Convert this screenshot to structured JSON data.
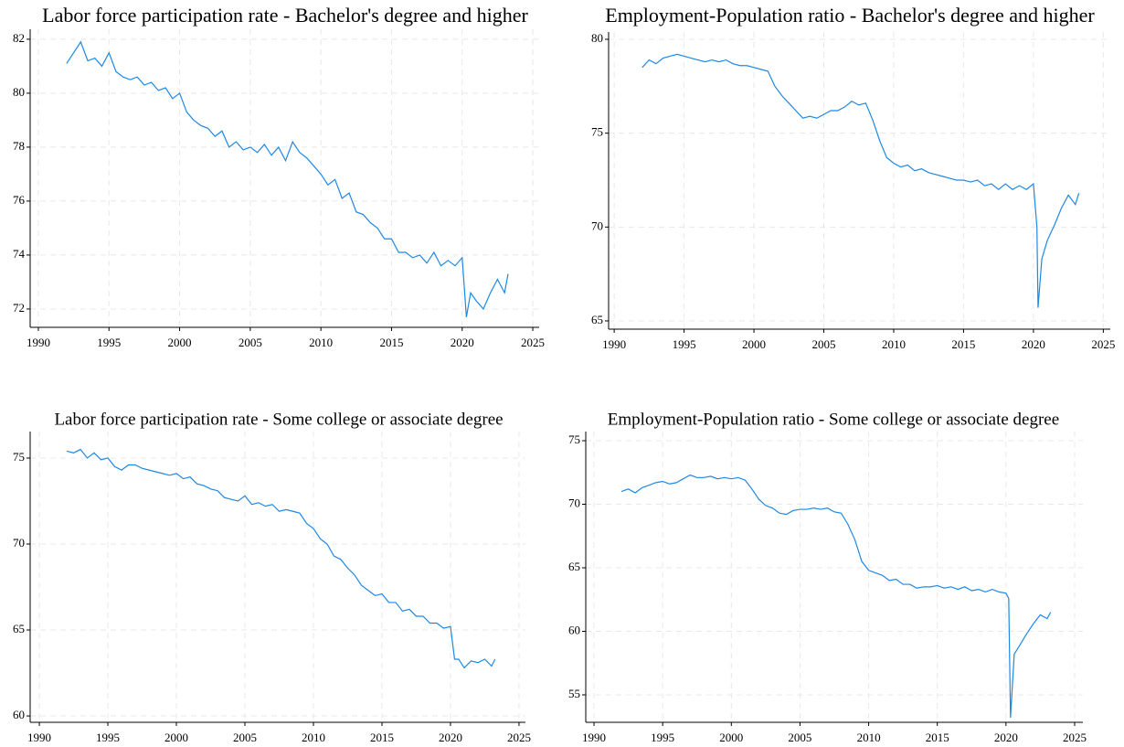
{
  "chart_data": [
    {
      "type": "line",
      "title": "Labor force participation rate - Bachelor's degree and higher",
      "color": "#1e88e5",
      "grid": true,
      "xlim": [
        1989.42,
        2025.45
      ],
      "ylim": [
        71.32,
        82.37
      ],
      "xticks": [
        1990,
        1995,
        2000,
        2005,
        2010,
        2015,
        2020,
        2025
      ],
      "yticks": [
        72,
        74,
        76,
        78,
        80,
        82
      ],
      "x": [
        1992.0,
        1992.5,
        1993.0,
        1993.5,
        1994.0,
        1994.5,
        1995.0,
        1995.5,
        1996.0,
        1996.5,
        1997.0,
        1997.5,
        1998.0,
        1998.5,
        1999.0,
        1999.5,
        2000.0,
        2000.5,
        2001.0,
        2001.5,
        2002.0,
        2002.5,
        2003.0,
        2003.5,
        2004.0,
        2004.5,
        2005.0,
        2005.5,
        2006.0,
        2006.5,
        2007.0,
        2007.5,
        2008.0,
        2008.5,
        2009.0,
        2009.5,
        2010.0,
        2010.5,
        2011.0,
        2011.5,
        2012.0,
        2012.5,
        2013.0,
        2013.5,
        2014.0,
        2014.5,
        2015.0,
        2015.5,
        2016.0,
        2016.5,
        2017.0,
        2017.5,
        2018.0,
        2018.5,
        2019.0,
        2019.5,
        2020.0,
        2020.3,
        2020.6,
        2021.0,
        2021.5,
        2022.0,
        2022.5,
        2023.0,
        2023.25
      ],
      "values": [
        81.1,
        81.5,
        81.9,
        81.2,
        81.3,
        81.0,
        81.5,
        80.8,
        80.6,
        80.5,
        80.6,
        80.3,
        80.4,
        80.1,
        80.2,
        79.8,
        80.0,
        79.3,
        79.0,
        78.8,
        78.7,
        78.4,
        78.6,
        78.0,
        78.2,
        77.9,
        78.0,
        77.8,
        78.1,
        77.7,
        78.0,
        77.5,
        78.2,
        77.8,
        77.6,
        77.3,
        77.0,
        76.6,
        76.8,
        76.1,
        76.3,
        75.6,
        75.5,
        75.2,
        75.0,
        74.6,
        74.6,
        74.1,
        74.1,
        73.9,
        74.0,
        73.7,
        74.1,
        73.6,
        73.8,
        73.6,
        73.9,
        71.7,
        72.6,
        72.3,
        72.0,
        72.6,
        73.1,
        72.6,
        73.3
      ]
    },
    {
      "type": "line",
      "title": "Employment-Population ratio - Bachelor's degree and higher",
      "color": "#1e88e5",
      "grid": true,
      "xlim": [
        1989.6,
        2025.5
      ],
      "ylim": [
        64.56,
        80.39
      ],
      "xticks": [
        1990,
        1995,
        2000,
        2005,
        2010,
        2015,
        2020,
        2025
      ],
      "yticks": [
        65,
        70,
        75,
        80
      ],
      "x": [
        1992.0,
        1992.5,
        1993.0,
        1993.5,
        1994.0,
        1994.5,
        1995.0,
        1995.5,
        1996.0,
        1996.5,
        1997.0,
        1997.5,
        1998.0,
        1998.5,
        1999.0,
        1999.5,
        2000.0,
        2000.5,
        2001.0,
        2001.5,
        2002.0,
        2002.5,
        2003.0,
        2003.5,
        2004.0,
        2004.5,
        2005.0,
        2005.5,
        2006.0,
        2006.5,
        2007.0,
        2007.5,
        2008.0,
        2008.5,
        2009.0,
        2009.5,
        2010.0,
        2010.5,
        2011.0,
        2011.5,
        2012.0,
        2012.5,
        2013.0,
        2013.5,
        2014.0,
        2014.5,
        2015.0,
        2015.5,
        2016.0,
        2016.5,
        2017.0,
        2017.5,
        2018.0,
        2018.5,
        2019.0,
        2019.5,
        2020.0,
        2020.25,
        2020.33,
        2020.6,
        2021.0,
        2021.5,
        2022.0,
        2022.5,
        2023.0,
        2023.25
      ],
      "values": [
        78.5,
        78.9,
        78.7,
        79.0,
        79.1,
        79.2,
        79.1,
        79.0,
        78.9,
        78.8,
        78.9,
        78.8,
        78.9,
        78.7,
        78.6,
        78.6,
        78.5,
        78.4,
        78.3,
        77.5,
        77.0,
        76.6,
        76.2,
        75.8,
        75.9,
        75.8,
        76.0,
        76.2,
        76.2,
        76.4,
        76.7,
        76.5,
        76.6,
        75.7,
        74.6,
        73.7,
        73.4,
        73.2,
        73.3,
        73.0,
        73.1,
        72.9,
        72.8,
        72.7,
        72.6,
        72.5,
        72.5,
        72.4,
        72.5,
        72.2,
        72.3,
        72.0,
        72.3,
        72.0,
        72.2,
        72.0,
        72.3,
        70.0,
        65.7,
        68.3,
        69.3,
        70.1,
        71.0,
        71.7,
        71.2,
        71.8
      ]
    },
    {
      "type": "line",
      "title": "Labor force participation rate - Some college or associate degree",
      "color": "#1e88e5",
      "grid": true,
      "xlim": [
        1989.33,
        2025.47
      ],
      "ylim": [
        59.63,
        76.54
      ],
      "xticks": [
        1990,
        1995,
        2000,
        2005,
        2010,
        2015,
        2020,
        2025
      ],
      "yticks": [
        60,
        65,
        70,
        75
      ],
      "x": [
        1992.0,
        1992.5,
        1993.0,
        1993.5,
        1994.0,
        1994.5,
        1995.0,
        1995.5,
        1996.0,
        1996.5,
        1997.0,
        1997.5,
        1998.0,
        1998.5,
        1999.0,
        1999.5,
        2000.0,
        2000.5,
        2001.0,
        2001.5,
        2002.0,
        2002.5,
        2003.0,
        2003.5,
        2004.0,
        2004.5,
        2005.0,
        2005.5,
        2006.0,
        2006.5,
        2007.0,
        2007.5,
        2008.0,
        2008.5,
        2009.0,
        2009.5,
        2010.0,
        2010.5,
        2011.0,
        2011.5,
        2012.0,
        2012.5,
        2013.0,
        2013.5,
        2014.0,
        2014.5,
        2015.0,
        2015.5,
        2016.0,
        2016.5,
        2017.0,
        2017.5,
        2018.0,
        2018.5,
        2019.0,
        2019.5,
        2020.0,
        2020.3,
        2020.6,
        2021.0,
        2021.5,
        2022.0,
        2022.5,
        2023.0,
        2023.25
      ],
      "values": [
        75.4,
        75.3,
        75.5,
        75.0,
        75.3,
        74.9,
        75.0,
        74.5,
        74.3,
        74.6,
        74.6,
        74.4,
        74.3,
        74.2,
        74.1,
        74.0,
        74.1,
        73.8,
        73.9,
        73.5,
        73.4,
        73.2,
        73.1,
        72.7,
        72.6,
        72.5,
        72.8,
        72.3,
        72.4,
        72.2,
        72.3,
        71.9,
        72.0,
        71.9,
        71.8,
        71.2,
        70.9,
        70.3,
        70.0,
        69.3,
        69.1,
        68.6,
        68.2,
        67.6,
        67.3,
        67.0,
        67.1,
        66.6,
        66.6,
        66.1,
        66.2,
        65.8,
        65.8,
        65.4,
        65.4,
        65.1,
        65.2,
        63.3,
        63.3,
        62.8,
        63.2,
        63.1,
        63.3,
        62.9,
        63.3
      ]
    },
    {
      "type": "line",
      "title": "Employment-Population ratio - Some college or associate degree",
      "color": "#1e88e5",
      "grid": true,
      "xlim": [
        1989.4,
        2025.6
      ],
      "ylim": [
        52.84,
        75.72
      ],
      "xticks": [
        1990,
        1995,
        2000,
        2005,
        2010,
        2015,
        2020,
        2025
      ],
      "yticks": [
        55,
        60,
        65,
        70,
        75
      ],
      "x": [
        1992.0,
        1992.5,
        1993.0,
        1993.5,
        1994.0,
        1994.5,
        1995.0,
        1995.5,
        1996.0,
        1996.5,
        1997.0,
        1997.5,
        1998.0,
        1998.5,
        1999.0,
        1999.5,
        2000.0,
        2000.5,
        2001.0,
        2001.5,
        2002.0,
        2002.5,
        2003.0,
        2003.5,
        2004.0,
        2004.5,
        2005.0,
        2005.5,
        2006.0,
        2006.5,
        2007.0,
        2007.5,
        2008.0,
        2008.5,
        2009.0,
        2009.5,
        2010.0,
        2010.5,
        2011.0,
        2011.5,
        2012.0,
        2012.5,
        2013.0,
        2013.5,
        2014.0,
        2014.5,
        2015.0,
        2015.5,
        2016.0,
        2016.5,
        2017.0,
        2017.5,
        2018.0,
        2018.5,
        2019.0,
        2019.5,
        2020.0,
        2020.2,
        2020.33,
        2020.6,
        2021.0,
        2021.5,
        2022.0,
        2022.5,
        2023.0,
        2023.25
      ],
      "values": [
        71.0,
        71.2,
        70.9,
        71.3,
        71.5,
        71.7,
        71.8,
        71.6,
        71.7,
        72.0,
        72.3,
        72.1,
        72.1,
        72.2,
        72.0,
        72.1,
        72.0,
        72.1,
        71.9,
        71.2,
        70.4,
        69.9,
        69.7,
        69.3,
        69.2,
        69.5,
        69.6,
        69.6,
        69.7,
        69.6,
        69.7,
        69.4,
        69.3,
        68.4,
        67.2,
        65.5,
        64.8,
        64.6,
        64.4,
        64.0,
        64.1,
        63.7,
        63.7,
        63.4,
        63.5,
        63.5,
        63.6,
        63.4,
        63.5,
        63.3,
        63.5,
        63.2,
        63.3,
        63.1,
        63.3,
        63.1,
        63.0,
        62.6,
        53.2,
        58.2,
        58.9,
        59.8,
        60.6,
        61.3,
        61.0,
        61.5
      ]
    }
  ]
}
